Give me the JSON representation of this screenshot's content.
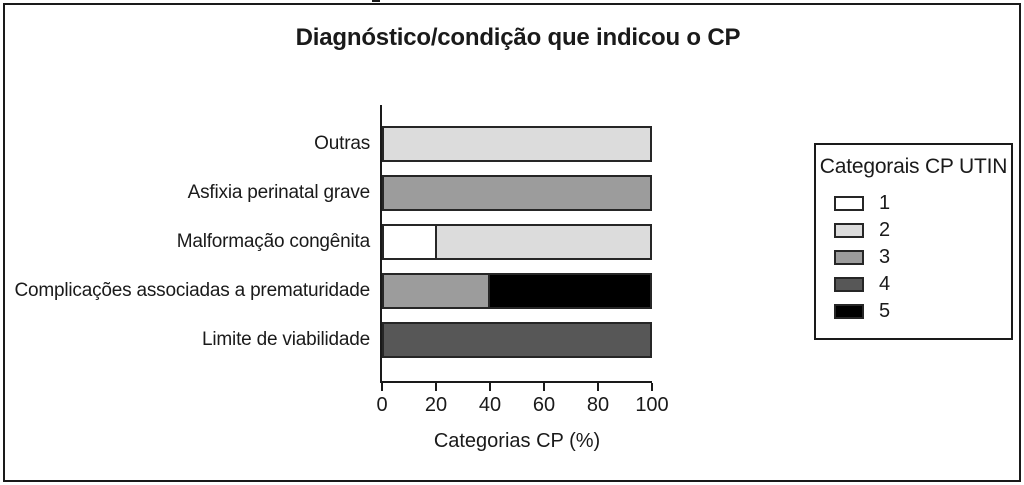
{
  "page": {
    "background": "#ffffff",
    "frame_border_color": "#1a1a1a"
  },
  "chart_data": {
    "type": "bar",
    "orientation": "horizontal",
    "stacked": true,
    "title": "Diagnóstico/condição que indicou o CP",
    "xlabel": "Categorias CP (%)",
    "xlim": [
      0,
      100
    ],
    "xticks": [
      "0",
      "20",
      "40",
      "60",
      "80",
      "100"
    ],
    "grid": false,
    "categories": [
      "Outras",
      "Asfixia perinatal grave",
      "Malformação congênita",
      "Complicações associadas a prematuridade",
      "Limite de viabilidade"
    ],
    "legend": {
      "title": "Categorais CP UTIN",
      "position": "right",
      "entries": [
        {
          "label": "1",
          "color": "#ffffff"
        },
        {
          "label": "2",
          "color": "#dcdcdc"
        },
        {
          "label": "3",
          "color": "#9c9c9c"
        },
        {
          "label": "4",
          "color": "#575757"
        },
        {
          "label": "5",
          "color": "#000000"
        }
      ]
    },
    "bars": [
      {
        "category": "Outras",
        "segments": [
          {
            "series": "2",
            "value": 100
          }
        ]
      },
      {
        "category": "Asfixia perinatal grave",
        "segments": [
          {
            "series": "3",
            "value": 100
          }
        ]
      },
      {
        "category": "Malformação congênita",
        "segments": [
          {
            "series": "1",
            "value": 20
          },
          {
            "series": "2",
            "value": 80
          }
        ]
      },
      {
        "category": "Complicações associadas a prematuridade",
        "segments": [
          {
            "series": "3",
            "value": 40
          },
          {
            "series": "5",
            "value": 60
          }
        ]
      },
      {
        "category": "Limite de viabilidade",
        "segments": [
          {
            "series": "4",
            "value": 100
          }
        ]
      }
    ],
    "colors": {
      "bar_border": "#262626",
      "axis": "#1a1a1a"
    }
  }
}
